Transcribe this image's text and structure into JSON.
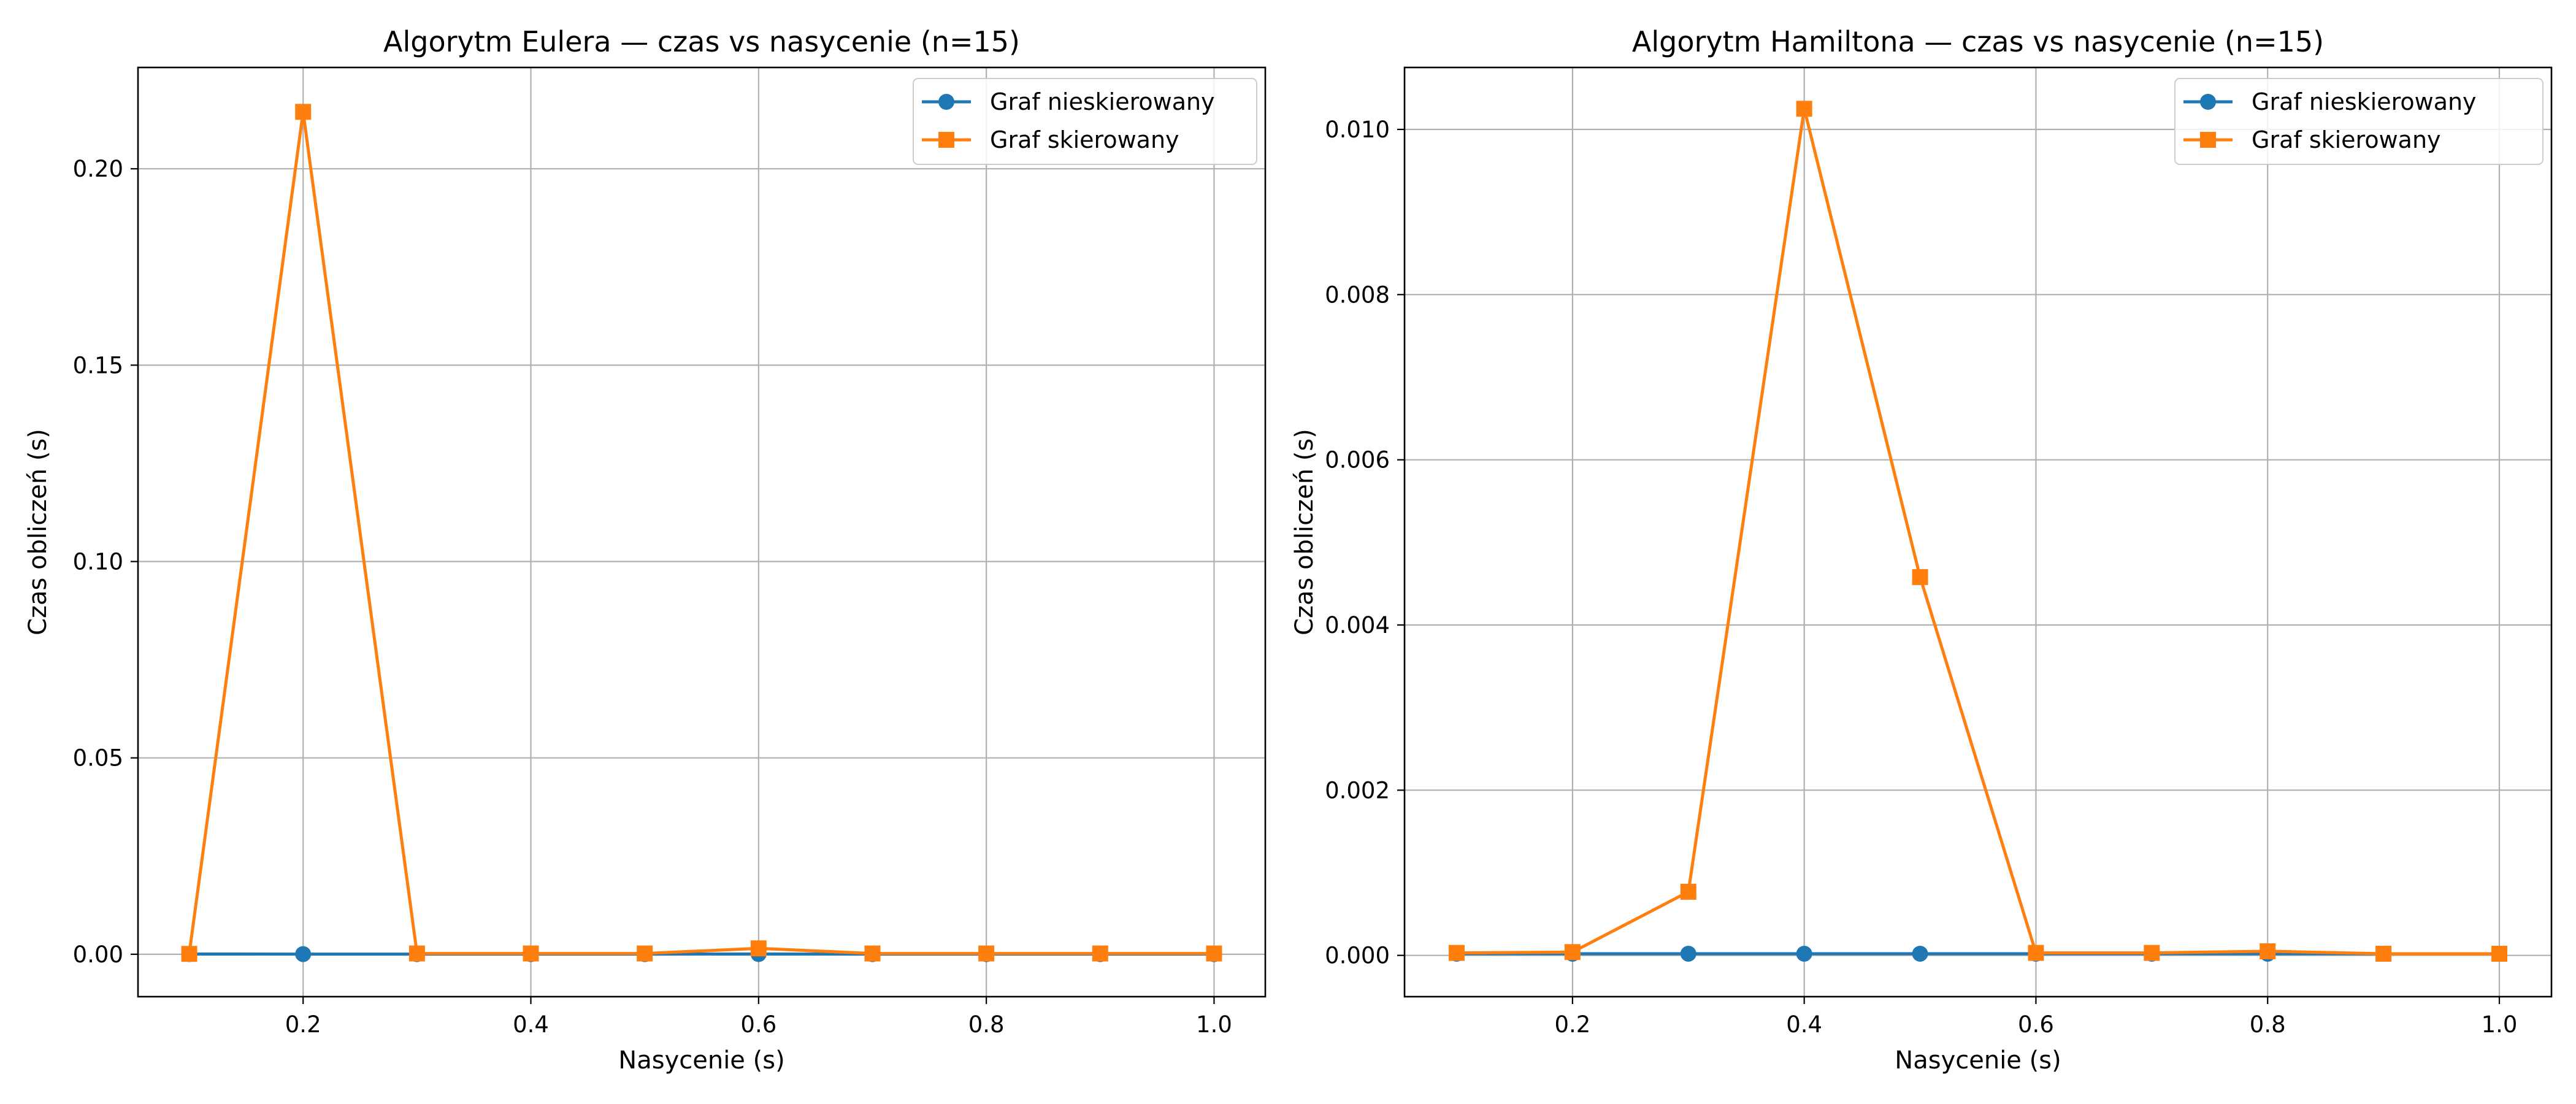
{
  "colors": {
    "series1": "#1f77b4",
    "series2": "#ff7f0e",
    "grid": "#b0b0b0",
    "axes": "#000000",
    "background": "#ffffff"
  },
  "chart_data": [
    {
      "type": "line",
      "title": "Algorytm Eulera — czas vs nasycenie (n=15)",
      "xlabel": "Nasycenie (s)",
      "ylabel": "Czas obliczeń (s)",
      "xlim": [
        0.055,
        1.045
      ],
      "ylim": [
        -0.0108,
        0.2258
      ],
      "xticks": [
        0.2,
        0.4,
        0.6,
        0.8,
        1.0
      ],
      "xtick_labels": [
        "0.2",
        "0.4",
        "0.6",
        "0.8",
        "1.0"
      ],
      "yticks": [
        0.0,
        0.05,
        0.1,
        0.15,
        0.2
      ],
      "ytick_labels": [
        "0.00",
        "0.05",
        "0.10",
        "0.15",
        "0.20"
      ],
      "grid": true,
      "legend": "top-right",
      "x": [
        0.1,
        0.2,
        0.3,
        0.4,
        0.5,
        0.6,
        0.7,
        0.8,
        0.9,
        1.0
      ],
      "series": [
        {
          "name": "Graf nieskierowany",
          "marker": "circle",
          "color": "#1f77b4",
          "values": [
            5e-05,
            4e-05,
            4e-05,
            4e-05,
            4e-05,
            5e-05,
            4e-05,
            4e-05,
            4e-05,
            4e-05
          ]
        },
        {
          "name": "Graf skierowany",
          "marker": "square",
          "color": "#ff7f0e",
          "values": [
            0.0001,
            0.2145,
            0.0002,
            0.0002,
            0.0002,
            0.0015,
            0.0002,
            0.0002,
            0.0002,
            0.0002
          ]
        }
      ]
    },
    {
      "type": "line",
      "title": "Algorytm Hamiltona — czas vs nasycenie (n=15)",
      "xlabel": "Nasycenie (s)",
      "ylabel": "Czas obliczeń (s)",
      "xlim": [
        0.055,
        1.045
      ],
      "ylim": [
        -0.0005,
        0.01075
      ],
      "xticks": [
        0.2,
        0.4,
        0.6,
        0.8,
        1.0
      ],
      "xtick_labels": [
        "0.2",
        "0.4",
        "0.6",
        "0.8",
        "1.0"
      ],
      "yticks": [
        0.0,
        0.002,
        0.004,
        0.006,
        0.008,
        0.01
      ],
      "ytick_labels": [
        "0.000",
        "0.002",
        "0.004",
        "0.006",
        "0.008",
        "0.010"
      ],
      "grid": true,
      "legend": "top-right",
      "x": [
        0.1,
        0.2,
        0.3,
        0.4,
        0.5,
        0.6,
        0.7,
        0.8,
        0.9,
        1.0
      ],
      "series": [
        {
          "name": "Graf nieskierowany",
          "marker": "circle",
          "color": "#1f77b4",
          "values": [
            2e-05,
            2e-05,
            2e-05,
            2e-05,
            2e-05,
            2e-05,
            2e-05,
            2e-05,
            2e-05,
            2e-05
          ]
        },
        {
          "name": "Graf skierowany",
          "marker": "square",
          "color": "#ff7f0e",
          "values": [
            3e-05,
            4e-05,
            0.00077,
            0.01025,
            0.00458,
            3e-05,
            3e-05,
            5e-05,
            2e-05,
            2e-05
          ]
        }
      ]
    }
  ]
}
